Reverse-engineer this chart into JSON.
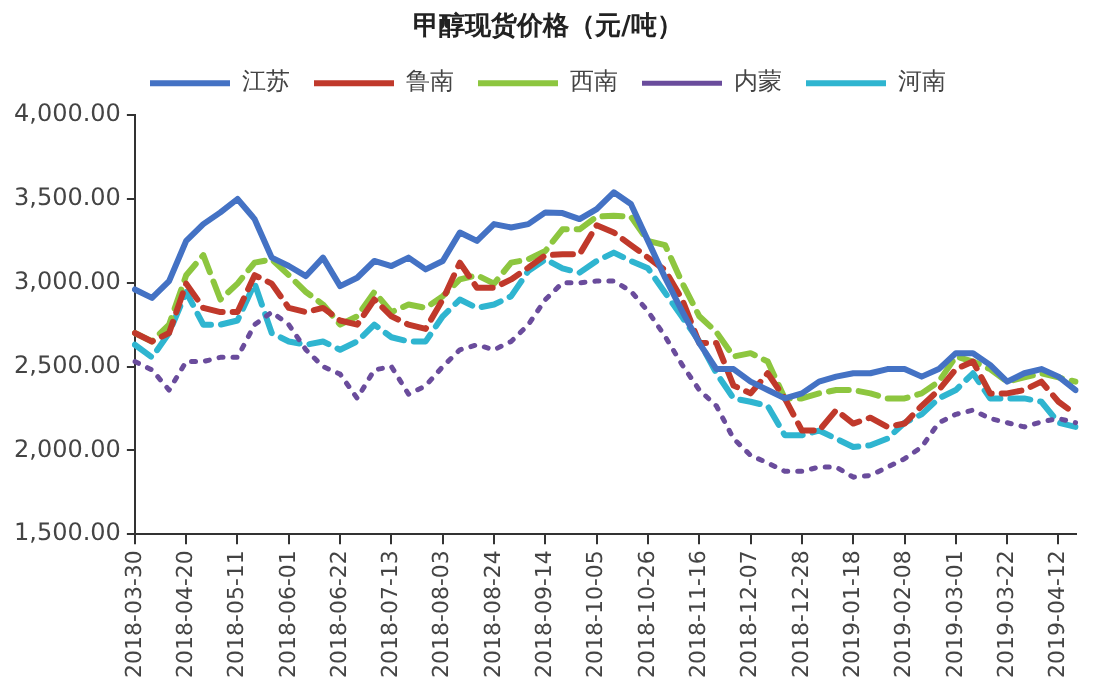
{
  "chart_data": {
    "type": "line",
    "title": "甲醇现货价格（元/吨）",
    "categories": [
      "2018-03-30",
      null,
      null,
      "2018-04-20",
      null,
      null,
      "2018-05-11",
      null,
      null,
      "2018-06-01",
      null,
      null,
      "2018-06-22",
      null,
      null,
      "2018-07-13",
      null,
      null,
      "2018-08-03",
      null,
      null,
      "2018-08-24",
      null,
      null,
      "2018-09-14",
      null,
      null,
      "2018-10-05",
      null,
      null,
      "2018-10-26",
      null,
      null,
      "2018-11-16",
      null,
      null,
      "2018-12-07",
      null,
      null,
      "2018-12-28",
      null,
      null,
      "2019-01-18",
      null,
      null,
      "2019-02-08",
      null,
      null,
      "2019-03-01",
      null,
      null,
      "2019-03-22",
      null,
      null,
      "2019-04-12",
      null
    ],
    "series": [
      {
        "name": "江苏",
        "color": "#4472c4",
        "line_style": "solid",
        "values": [
          2960,
          2910,
          3010,
          3250,
          3350,
          3420,
          3500,
          3380,
          3150,
          3100,
          3040,
          3150,
          2980,
          3030,
          3130,
          3100,
          3150,
          3080,
          3130,
          3300,
          3250,
          3350,
          3330,
          3350,
          3420,
          3416,
          3380,
          3440,
          3540,
          3470,
          3250,
          3030,
          2830,
          2640,
          2485,
          2485,
          2410,
          2360,
          2310,
          2340,
          2410,
          2440,
          2460,
          2460,
          2485,
          2485,
          2440,
          2485,
          2580,
          2580,
          2510,
          2410,
          2460,
          2485,
          2440,
          2360
        ]
      },
      {
        "name": "鲁南",
        "color": "#c0392b",
        "line_style": "dashed",
        "values": [
          2700,
          2650,
          2700,
          2995,
          2850,
          2825,
          2825,
          3045,
          2995,
          2850,
          2825,
          2850,
          2775,
          2750,
          2900,
          2800,
          2750,
          2725,
          2900,
          3120,
          2970,
          2970,
          3020,
          3090,
          3165,
          3170,
          3170,
          3343,
          3300,
          3225,
          3150,
          3075,
          2900,
          2640,
          2640,
          2387,
          2340,
          2460,
          2310,
          2118,
          2118,
          2240,
          2160,
          2195,
          2140,
          2160,
          2265,
          2360,
          2485,
          2530,
          2340,
          2340,
          2360,
          2410,
          2290,
          2215
        ]
      },
      {
        "name": "西南",
        "color": "#8dc63f",
        "line_style": "dashed",
        "values": [
          2700,
          2650,
          2750,
          3045,
          3165,
          2900,
          2995,
          3120,
          3140,
          3045,
          2945,
          2870,
          2750,
          2800,
          2945,
          2825,
          2870,
          2850,
          2920,
          3020,
          3045,
          2995,
          3120,
          3140,
          3190,
          3319,
          3319,
          3395,
          3400,
          3395,
          3250,
          3225,
          3000,
          2800,
          2706,
          2560,
          2580,
          2530,
          2310,
          2310,
          2340,
          2360,
          2360,
          2340,
          2310,
          2310,
          2340,
          2410,
          2560,
          2530,
          2485,
          2410,
          2435,
          2460,
          2435,
          2410
        ]
      },
      {
        "name": "内蒙",
        "color": "#6a4c9c",
        "line_style": "dotted",
        "values": [
          2530,
          2480,
          2360,
          2530,
          2530,
          2555,
          2555,
          2750,
          2825,
          2750,
          2600,
          2500,
          2455,
          2310,
          2480,
          2500,
          2335,
          2385,
          2500,
          2600,
          2630,
          2600,
          2650,
          2750,
          2900,
          3000,
          3000,
          3010,
          3010,
          2950,
          2830,
          2680,
          2510,
          2360,
          2265,
          2070,
          1970,
          1925,
          1875,
          1875,
          1900,
          1900,
          1840,
          1850,
          1900,
          1950,
          2020,
          2165,
          2215,
          2240,
          2190,
          2165,
          2140,
          2170,
          2190,
          2165
        ]
      },
      {
        "name": "河南",
        "color": "#2fb5d0",
        "line_style": "dashed",
        "values": [
          2630,
          2555,
          2700,
          2945,
          2750,
          2750,
          2775,
          2995,
          2700,
          2650,
          2630,
          2650,
          2600,
          2650,
          2750,
          2675,
          2650,
          2650,
          2800,
          2900,
          2850,
          2870,
          2920,
          3070,
          3140,
          3086,
          3060,
          3130,
          3180,
          3130,
          3086,
          2940,
          2795,
          2650,
          2460,
          2310,
          2290,
          2265,
          2090,
          2090,
          2118,
          2070,
          2020,
          2030,
          2070,
          2165,
          2215,
          2310,
          2360,
          2460,
          2310,
          2310,
          2310,
          2290,
          2165,
          2140
        ]
      }
    ],
    "ylim": [
      1500,
      4000
    ],
    "yticks": [
      {
        "value": 1500,
        "label": "1,500.00"
      },
      {
        "value": 2000,
        "label": "2,000.00"
      },
      {
        "value": 2500,
        "label": "2,500.00"
      },
      {
        "value": 3000,
        "label": "3,000.00"
      },
      {
        "value": 3500,
        "label": "3,500.00"
      },
      {
        "value": 4000,
        "label": "4,000.00"
      }
    ],
    "grid": false,
    "legend": "top",
    "marker": "none"
  }
}
